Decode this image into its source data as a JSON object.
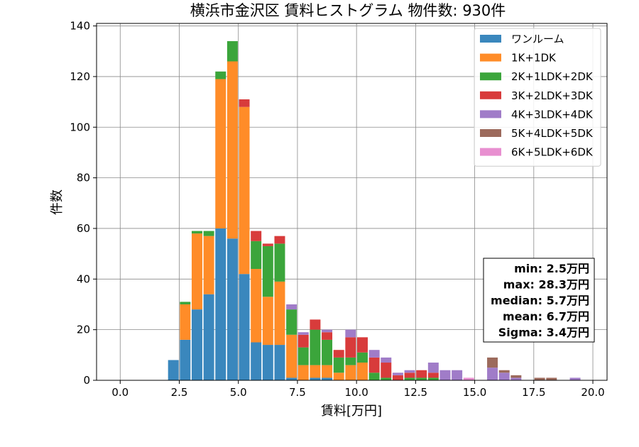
{
  "chart_data": {
    "type": "bar",
    "stacked": true,
    "title": "横浜市金沢区 賃料ヒストグラム  物件数: 930件",
    "xlabel": "賃料[万円]",
    "ylabel": "件数",
    "xlim": [
      -1,
      20.6
    ],
    "ylim": [
      0,
      141
    ],
    "xticks": [
      0,
      2.5,
      5,
      7.5,
      10,
      12.5,
      15,
      17.5,
      20
    ],
    "xtick_labels": [
      "0.0",
      "2.5",
      "5.0",
      "7.5",
      "10.0",
      "12.5",
      "15.0",
      "17.5",
      "20.0"
    ],
    "yticks": [
      0,
      20,
      40,
      60,
      80,
      100,
      120,
      140
    ],
    "ytick_labels": [
      "0",
      "20",
      "40",
      "60",
      "80",
      "100",
      "120",
      "140"
    ],
    "grid": true,
    "legend_position": "top-right",
    "bin_width": 0.5,
    "bin_starts": [
      2.0,
      2.5,
      3.0,
      3.5,
      4.0,
      4.5,
      5.0,
      5.5,
      6.0,
      6.5,
      7.0,
      7.5,
      8.0,
      8.5,
      9.0,
      9.5,
      10.0,
      10.5,
      11.0,
      11.5,
      12.0,
      12.5,
      13.0,
      13.5,
      14.0,
      14.5,
      15.0,
      15.5,
      16.0,
      16.5,
      17.0,
      17.5,
      18.0,
      18.5,
      19.0,
      19.5
    ],
    "series": [
      {
        "name": "ワンルーム",
        "color": "#3a87bd",
        "values": [
          8,
          16,
          28,
          34,
          60,
          56,
          42,
          15,
          14,
          14,
          1,
          0,
          1,
          1,
          0,
          0,
          0,
          0,
          0,
          0,
          0,
          0,
          0,
          0,
          0,
          0,
          0,
          0,
          0,
          0,
          0,
          0,
          0,
          0,
          0,
          0
        ]
      },
      {
        "name": "1K+1DK",
        "color": "#ff8c28",
        "values": [
          0,
          14,
          30,
          23,
          59,
          70,
          66,
          29,
          19,
          25,
          17,
          6,
          5,
          5,
          3,
          6,
          7,
          0,
          0,
          0,
          0,
          0,
          0,
          0,
          0,
          0,
          0,
          0,
          0,
          0,
          0,
          0,
          0,
          0,
          0,
          0
        ]
      },
      {
        "name": "2K+1LDK+2DK",
        "color": "#3ba53b",
        "values": [
          0,
          1,
          1,
          2,
          3,
          8,
          0,
          11,
          20,
          15,
          10,
          7,
          14,
          10,
          6,
          3,
          4,
          3,
          1,
          0,
          1,
          1,
          1,
          0,
          0,
          0,
          0,
          0,
          0,
          0,
          0,
          0,
          0,
          0,
          0,
          0
        ]
      },
      {
        "name": "3K+2LDK+3DK",
        "color": "#d83b3b",
        "values": [
          0,
          0,
          0,
          0,
          0,
          0,
          3,
          4,
          1,
          3,
          0,
          5,
          4,
          3,
          3,
          8,
          6,
          6,
          6,
          2,
          2,
          3,
          2,
          0,
          0,
          0,
          0,
          0,
          0,
          0,
          0,
          0,
          0,
          0,
          0,
          0
        ]
      },
      {
        "name": "4K+3LDK+4DK",
        "color": "#a07cc8",
        "values": [
          0,
          0,
          0,
          0,
          0,
          0,
          0,
          0,
          0,
          0,
          2,
          1,
          0,
          1,
          0,
          3,
          0,
          3,
          2,
          1,
          1,
          0,
          4,
          4,
          4,
          0,
          0,
          5,
          3,
          1,
          0,
          0,
          0,
          0,
          1,
          0
        ]
      },
      {
        "name": "5K+4LDK+5DK",
        "color": "#9c6a5c",
        "values": [
          0,
          0,
          0,
          0,
          0,
          0,
          0,
          0,
          0,
          0,
          0,
          0,
          0,
          0,
          0,
          0,
          0,
          0,
          0,
          0,
          0,
          0,
          0,
          0,
          0,
          0,
          0,
          4,
          1,
          1,
          0,
          1,
          1,
          0,
          0,
          0
        ]
      },
      {
        "name": "6K+5LDK+6DK",
        "color": "#e88fd0",
        "values": [
          0,
          0,
          0,
          0,
          0,
          0,
          0,
          0,
          0,
          0,
          0,
          0,
          0,
          0,
          0,
          0,
          0,
          0,
          0,
          0,
          0,
          0,
          0,
          0,
          0,
          1,
          0,
          0,
          0,
          0,
          0,
          0,
          0,
          0,
          0,
          0
        ]
      }
    ],
    "stats": {
      "min": "min: 2.5万円",
      "max": "max: 28.3万円",
      "median": "median: 5.7万円",
      "mean": "mean: 6.7万円",
      "sigma": "Sigma: 3.4万円"
    }
  }
}
